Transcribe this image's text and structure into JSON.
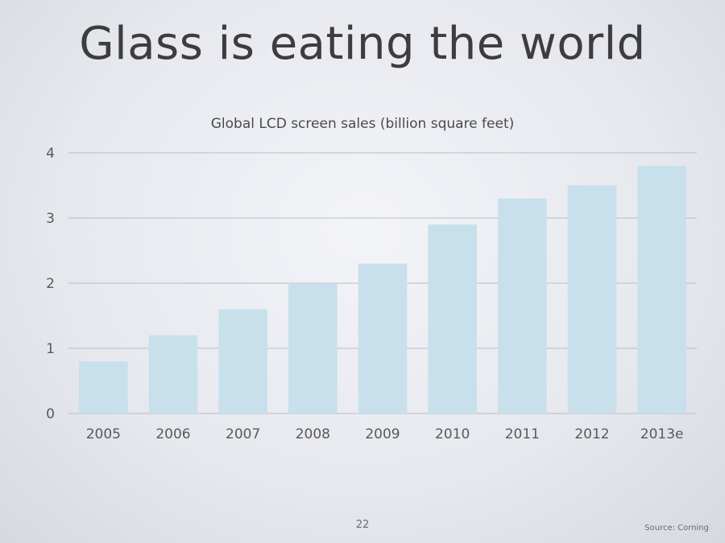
{
  "slide": {
    "title": "Glass is eating the world",
    "page_number": "22",
    "source": "Source: Corning"
  },
  "chart_data": {
    "type": "bar",
    "title": "Global LCD screen sales (billion square feet)",
    "xlabel": "",
    "ylabel": "",
    "categories": [
      "2005",
      "2006",
      "2007",
      "2008",
      "2009",
      "2010",
      "2011",
      "2012",
      "2013e"
    ],
    "values": [
      0.8,
      1.2,
      1.6,
      2.0,
      2.3,
      2.9,
      3.3,
      3.5,
      3.8
    ],
    "ylim": [
      0,
      4
    ],
    "yticks": [
      0,
      1,
      2,
      3,
      4
    ],
    "grid": true,
    "bar_color": "#c8e0ec",
    "grid_color": "#b8bcc4"
  }
}
